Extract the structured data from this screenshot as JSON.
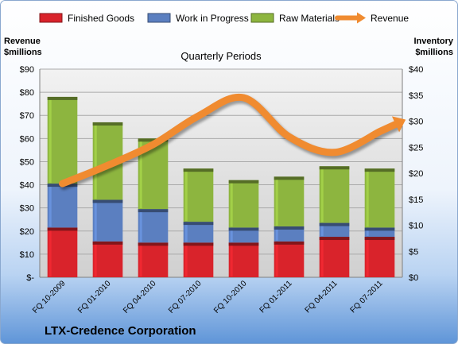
{
  "chart_data": {
    "type": "bar",
    "subtype": "stacked bar with line overlay, dual axis",
    "title": "LTX-Credence Corporation",
    "subtitle": "Quarterly Periods",
    "y_left_label": [
      "Revenue",
      "$millions"
    ],
    "y_right_label": [
      "Inventory",
      "$millions"
    ],
    "y_left_ticks": [
      "$-",
      "$10",
      "$20",
      "$30",
      "$40",
      "$50",
      "$60",
      "$70",
      "$80",
      "$90"
    ],
    "y_right_ticks": [
      "$0",
      "$5",
      "$10",
      "$15",
      "$20",
      "$25",
      "$30",
      "$35",
      "$40"
    ],
    "ylim_left": [
      0,
      90
    ],
    "ylim_right": [
      0,
      40
    ],
    "categories": [
      "FQ 10-2009",
      "FQ 01-2010",
      "FQ 04-2010",
      "FQ 07-2010",
      "FQ 10-2010",
      "FQ 01-2011",
      "FQ 04-2011",
      "FQ 07-2011"
    ],
    "series": [
      {
        "name": "Finished Goods",
        "type": "bar",
        "axis": "left",
        "color": "#d9232b",
        "values": [
          21.5,
          15.5,
          15,
          15,
          15,
          15.5,
          17.5,
          17.5
        ]
      },
      {
        "name": "Work in Progress",
        "type": "bar",
        "axis": "left",
        "color": "#5b7fc0",
        "values": [
          19,
          18,
          14.5,
          9,
          6.5,
          6.5,
          6,
          4
        ]
      },
      {
        "name": "Raw Materials",
        "type": "bar",
        "axis": "left",
        "color": "#8db53f",
        "values": [
          37.5,
          33.5,
          30.5,
          23,
          20.5,
          21.5,
          24.5,
          25.5
        ]
      },
      {
        "name": "Revenue",
        "type": "line",
        "axis": "right",
        "color": "#f08b30",
        "values": [
          18,
          21.5,
          25.5,
          31,
          34.5,
          27,
          24,
          28
        ]
      }
    ],
    "grid": true,
    "legend_position": "top"
  }
}
